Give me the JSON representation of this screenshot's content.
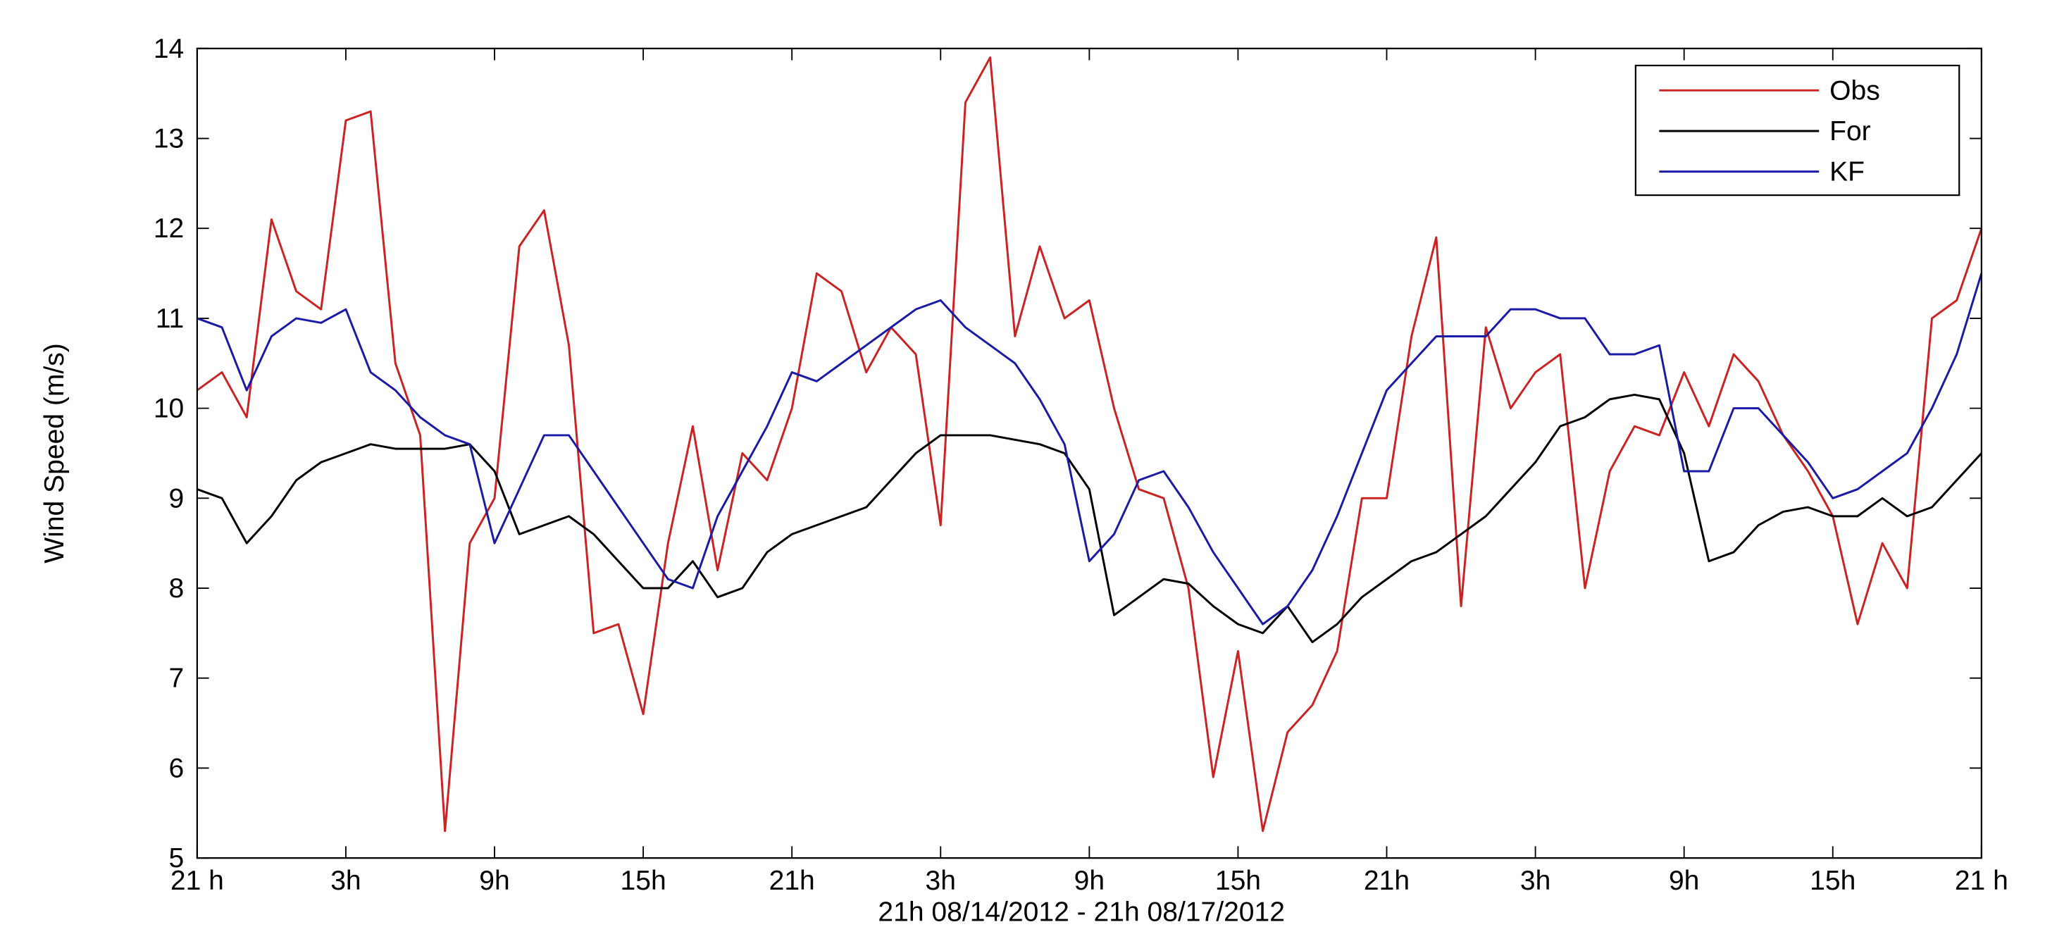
{
  "chart_data": {
    "type": "line",
    "y_label": "Wind Speed (m/s)",
    "x_label": "21h 08/14/2012 - 21h 08/17/2012",
    "x": [
      0,
      1,
      2,
      3,
      4,
      5,
      6,
      7,
      8,
      9,
      10,
      11,
      12,
      13,
      14,
      15,
      16,
      17,
      18,
      19,
      20,
      21,
      22,
      23,
      24,
      25,
      26,
      27,
      28,
      29,
      30,
      31,
      32,
      33,
      34,
      35,
      36,
      37,
      38,
      39,
      40,
      41,
      42,
      43,
      44,
      45,
      46,
      47,
      48,
      49,
      50,
      51,
      52,
      53,
      54,
      55,
      56,
      57,
      58,
      59,
      60,
      61,
      62,
      63,
      64,
      65,
      66,
      67,
      68,
      69,
      70,
      71,
      72
    ],
    "series": [
      {
        "name": "Obs",
        "color": "#cc2222",
        "values": [
          10.2,
          10.4,
          9.9,
          12.1,
          11.3,
          11.1,
          13.2,
          13.3,
          10.5,
          9.7,
          5.3,
          8.5,
          9.0,
          11.8,
          12.2,
          10.7,
          7.5,
          7.6,
          6.6,
          8.5,
          9.8,
          8.2,
          9.5,
          9.2,
          10.0,
          11.5,
          11.3,
          10.4,
          10.9,
          10.6,
          8.7,
          13.4,
          13.9,
          10.8,
          11.8,
          11.0,
          11.2,
          10.0,
          9.1,
          9.0,
          8.0,
          5.9,
          7.3,
          5.3,
          6.4,
          6.7,
          7.3,
          9.0,
          9.0,
          10.8,
          11.9,
          7.8,
          10.9,
          10.0,
          10.4,
          10.6,
          8.0,
          9.3,
          9.8,
          9.7,
          10.4,
          9.8,
          10.6,
          10.3,
          9.7,
          9.3,
          8.8,
          7.6,
          8.5,
          8.0,
          11.0,
          11.2,
          12.0
        ]
      },
      {
        "name": "For",
        "color": "#000000",
        "values": [
          9.1,
          9.0,
          8.5,
          8.8,
          9.2,
          9.4,
          9.5,
          9.6,
          9.55,
          9.55,
          9.55,
          9.6,
          9.3,
          8.6,
          8.7,
          8.8,
          8.6,
          8.3,
          8.0,
          8.0,
          8.3,
          7.9,
          8.0,
          8.4,
          8.6,
          8.7,
          8.8,
          8.9,
          9.2,
          9.5,
          9.7,
          9.7,
          9.7,
          9.65,
          9.6,
          9.5,
          9.1,
          7.7,
          7.9,
          8.1,
          8.05,
          7.8,
          7.6,
          7.5,
          7.8,
          7.4,
          7.6,
          7.9,
          8.1,
          8.3,
          8.4,
          8.6,
          8.8,
          9.1,
          9.4,
          9.8,
          9.9,
          10.1,
          10.15,
          10.1,
          9.5,
          8.3,
          8.4,
          8.7,
          8.85,
          8.9,
          8.8,
          8.8,
          9.0,
          8.8,
          8.9,
          9.2,
          9.5
        ]
      },
      {
        "name": "KF",
        "color": "#1a1aa6",
        "values": [
          11.0,
          10.9,
          10.2,
          10.8,
          11.0,
          10.95,
          11.1,
          10.4,
          10.2,
          9.9,
          9.7,
          9.6,
          8.5,
          9.1,
          9.7,
          9.7,
          9.3,
          8.9,
          8.5,
          8.1,
          8.0,
          8.8,
          9.3,
          9.8,
          10.4,
          10.3,
          10.5,
          10.7,
          10.9,
          11.1,
          11.2,
          10.9,
          10.7,
          10.5,
          10.1,
          9.6,
          8.3,
          8.6,
          9.2,
          9.3,
          8.9,
          8.4,
          8.0,
          7.6,
          7.8,
          8.2,
          8.8,
          9.5,
          10.2,
          10.5,
          10.8,
          10.8,
          10.8,
          11.1,
          11.1,
          11.0,
          11.0,
          10.6,
          10.6,
          10.7,
          9.3,
          9.3,
          10.0,
          10.0,
          9.7,
          9.4,
          9.0,
          9.1,
          9.3,
          9.5,
          10.0,
          10.6,
          11.5
        ]
      }
    ],
    "xlim": [
      0,
      72
    ],
    "xticks": [
      {
        "value": 0,
        "label": "21 h"
      },
      {
        "value": 6,
        "label": "3h"
      },
      {
        "value": 12,
        "label": "9h"
      },
      {
        "value": 18,
        "label": "15h"
      },
      {
        "value": 24,
        "label": "21h"
      },
      {
        "value": 30,
        "label": "3h"
      },
      {
        "value": 36,
        "label": "9h"
      },
      {
        "value": 42,
        "label": "15h"
      },
      {
        "value": 48,
        "label": "21h"
      },
      {
        "value": 54,
        "label": "3h"
      },
      {
        "value": 60,
        "label": "9h"
      },
      {
        "value": 66,
        "label": "15h"
      },
      {
        "value": 72,
        "label": "21 h"
      }
    ],
    "ylim": [
      5,
      14
    ],
    "yticks": [
      5,
      6,
      7,
      8,
      9,
      10,
      11,
      12,
      13,
      14
    ],
    "grid": false,
    "legend": "upper right"
  }
}
